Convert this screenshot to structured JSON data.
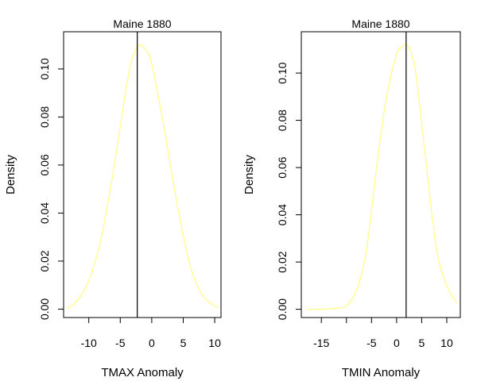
{
  "chart_data": [
    {
      "type": "line",
      "title": "Maine 1880",
      "xlabel": "TMAX Anomaly",
      "ylabel": "Density",
      "xlim": [
        -14,
        11
      ],
      "ylim": [
        -0.0035,
        0.1155
      ],
      "xticks": [
        -10,
        -5,
        0,
        5,
        10
      ],
      "yticks": [
        0.0,
        0.02,
        0.04,
        0.06,
        0.08,
        0.1
      ],
      "ytick_labels": [
        "0.00",
        "0.02",
        "0.04",
        "0.06",
        "0.08",
        "0.10"
      ],
      "vline_x": -2.3,
      "curve_color": "#ffff80",
      "series": [
        {
          "x": [
            -13.5,
            -12,
            -10,
            -8,
            -6,
            -4,
            -3,
            -2,
            -1,
            0,
            2,
            4,
            6,
            8,
            10.5
          ],
          "values": [
            0.0005,
            0.003,
            0.012,
            0.03,
            0.059,
            0.093,
            0.105,
            0.11,
            0.108,
            0.102,
            0.075,
            0.044,
            0.019,
            0.006,
            0.0005
          ]
        }
      ]
    },
    {
      "type": "line",
      "title": "Maine 1880",
      "xlabel": "TMIN Anomaly",
      "ylabel": "Density",
      "xlim": [
        -19,
        12.7
      ],
      "ylim": [
        -0.0035,
        0.1175
      ],
      "xticks": [
        -15,
        -5,
        0,
        5,
        10
      ],
      "yticks": [
        0.0,
        0.02,
        0.04,
        0.06,
        0.08,
        0.1
      ],
      "ytick_labels": [
        "0.00",
        "0.02",
        "0.04",
        "0.06",
        "0.08",
        "0.10"
      ],
      "extra_tick_marks_x": [
        -10
      ],
      "vline_x": 1.9,
      "curve_color": "#ffff80",
      "series": [
        {
          "x": [
            -18,
            -15,
            -12,
            -10,
            -8,
            -6,
            -4,
            -2,
            0,
            1,
            2,
            3,
            4,
            6,
            8,
            10,
            12
          ],
          "values": [
            0.0,
            0.0,
            0.0005,
            0.0015,
            0.008,
            0.025,
            0.06,
            0.09,
            0.108,
            0.111,
            0.112,
            0.108,
            0.097,
            0.06,
            0.025,
            0.01,
            0.0025
          ]
        }
      ]
    }
  ]
}
